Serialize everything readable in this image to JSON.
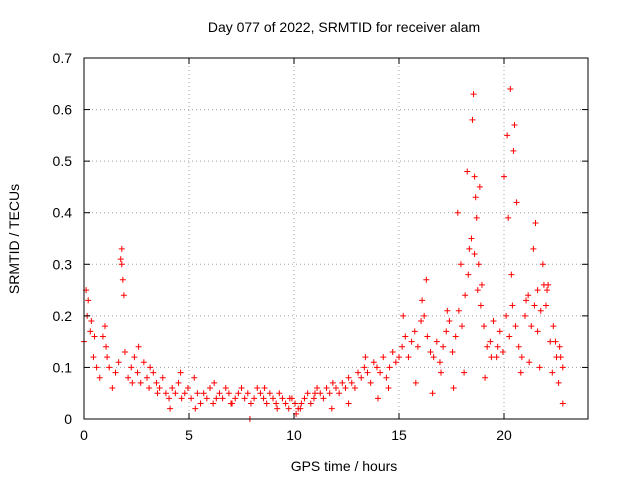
{
  "chart_data": {
    "type": "scatter",
    "title": "Day 077 of 2022, SRMTID for receiver alam",
    "xlabel": "GPS time / hours",
    "ylabel": "SRMTID / TECUs",
    "xlim": [
      0,
      24
    ],
    "ylim": [
      0,
      0.7
    ],
    "xticks": [
      0,
      5,
      10,
      15,
      20
    ],
    "yticks": [
      0,
      0.1,
      0.2,
      0.3,
      0.4,
      0.5,
      0.6,
      0.7
    ],
    "xtick_labels": [
      "0",
      "5",
      "10",
      "15",
      "20"
    ],
    "ytick_labels": [
      "0",
      "0.1",
      "0.2",
      "0.3",
      "0.4",
      "0.5",
      "0.6",
      "0.7"
    ],
    "grid": true,
    "marker": "+",
    "color": "#ff0000",
    "series": [
      {
        "name": "SRMTID",
        "x": [
          0.0,
          0.15,
          0.3,
          0.45,
          0.6,
          0.75,
          0.9,
          1.05,
          1.2,
          1.35,
          1.5,
          1.65,
          1.8,
          1.95,
          2.1,
          2.25,
          2.4,
          2.55,
          2.7,
          2.85,
          3.0,
          3.15,
          3.3,
          3.45,
          3.6,
          3.75,
          3.9,
          4.05,
          4.2,
          4.35,
          4.5,
          4.65,
          4.8,
          4.95,
          5.1,
          5.25,
          5.4,
          5.55,
          5.7,
          5.85,
          6.0,
          6.15,
          6.3,
          6.45,
          6.6,
          6.75,
          6.9,
          7.05,
          7.2,
          7.35,
          7.5,
          7.65,
          7.8,
          7.95,
          8.1,
          8.25,
          8.4,
          8.55,
          8.7,
          8.85,
          9.0,
          9.15,
          9.3,
          9.45,
          9.6,
          9.75,
          9.9,
          10.05,
          10.2,
          10.35,
          10.5,
          10.65,
          10.8,
          10.95,
          11.1,
          11.25,
          11.4,
          11.55,
          11.7,
          11.85,
          12.0,
          12.15,
          12.3,
          12.45,
          12.6,
          12.75,
          12.9,
          13.05,
          13.2,
          13.35,
          13.5,
          13.65,
          13.8,
          13.95,
          14.1,
          14.25,
          14.4,
          14.55,
          14.7,
          14.85,
          15.0,
          15.15,
          15.3,
          15.45,
          15.6,
          15.75,
          15.9,
          16.05,
          16.2,
          16.35,
          16.5,
          16.65,
          16.8,
          16.95,
          17.1,
          17.25,
          17.4,
          17.55,
          17.7,
          17.85,
          18.0,
          18.15,
          18.3,
          18.45,
          18.6,
          18.75,
          18.9,
          19.05,
          19.2,
          19.35,
          19.5,
          19.65,
          19.8,
          19.95,
          20.1,
          20.25,
          20.4,
          20.55,
          20.7,
          20.85,
          21.0,
          21.15,
          21.3,
          21.45,
          21.6,
          21.75,
          21.9,
          22.05,
          22.2,
          22.35,
          22.5,
          22.65,
          22.8,
          0.1,
          0.2,
          0.35,
          0.5,
          1.0,
          1.1,
          1.75,
          1.8,
          1.85,
          1.9,
          2.3,
          2.6,
          3.1,
          3.5,
          4.1,
          4.6,
          5.3,
          6.2,
          7.0,
          7.9,
          8.6,
          9.2,
          9.8,
          10.1,
          10.3,
          11.0,
          11.8,
          12.6,
          13.4,
          14.0,
          14.5,
          15.2,
          15.8,
          16.1,
          16.3,
          16.6,
          17.0,
          17.3,
          17.6,
          17.8,
          17.95,
          18.1,
          18.25,
          18.35,
          18.5,
          18.55,
          18.6,
          18.65,
          18.7,
          18.8,
          18.85,
          18.95,
          19.1,
          19.4,
          19.7,
          20.0,
          20.15,
          20.2,
          20.3,
          20.35,
          20.45,
          20.5,
          20.6,
          20.8,
          21.05,
          21.2,
          21.4,
          21.5,
          21.6,
          21.7,
          21.85,
          22.0,
          22.1,
          22.3,
          22.45,
          22.6,
          22.7,
          22.8
        ],
        "y": [
          0.15,
          0.2,
          0.17,
          0.12,
          0.1,
          0.08,
          0.16,
          0.14,
          0.1,
          0.06,
          0.09,
          0.11,
          0.3,
          0.13,
          0.08,
          0.1,
          0.12,
          0.09,
          0.07,
          0.11,
          0.08,
          0.1,
          0.09,
          0.07,
          0.06,
          0.08,
          0.05,
          0.04,
          0.06,
          0.05,
          0.07,
          0.04,
          0.05,
          0.06,
          0.04,
          0.08,
          0.05,
          0.03,
          0.05,
          0.04,
          0.06,
          0.03,
          0.04,
          0.05,
          0.04,
          0.06,
          0.05,
          0.03,
          0.04,
          0.05,
          0.06,
          0.04,
          0.05,
          0.03,
          0.04,
          0.06,
          0.05,
          0.04,
          0.03,
          0.05,
          0.04,
          0.03,
          0.05,
          0.04,
          0.03,
          0.02,
          0.04,
          0.03,
          0.02,
          0.03,
          0.04,
          0.05,
          0.03,
          0.04,
          0.06,
          0.05,
          0.04,
          0.06,
          0.05,
          0.07,
          0.06,
          0.05,
          0.07,
          0.06,
          0.08,
          0.07,
          0.06,
          0.09,
          0.08,
          0.1,
          0.09,
          0.07,
          0.11,
          0.1,
          0.09,
          0.12,
          0.08,
          0.1,
          0.13,
          0.11,
          0.12,
          0.14,
          0.16,
          0.12,
          0.15,
          0.17,
          0.14,
          0.19,
          0.2,
          0.16,
          0.13,
          0.12,
          0.15,
          0.11,
          0.14,
          0.17,
          0.19,
          0.13,
          0.16,
          0.21,
          0.18,
          0.24,
          0.28,
          0.35,
          0.32,
          0.25,
          0.22,
          0.18,
          0.14,
          0.15,
          0.19,
          0.12,
          0.17,
          0.13,
          0.2,
          0.16,
          0.22,
          0.18,
          0.14,
          0.12,
          0.2,
          0.24,
          0.18,
          0.22,
          0.17,
          0.21,
          0.26,
          0.25,
          0.15,
          0.18,
          0.12,
          0.14,
          0.1,
          0.25,
          0.23,
          0.19,
          0.16,
          0.18,
          0.12,
          0.31,
          0.33,
          0.27,
          0.24,
          0.07,
          0.14,
          0.06,
          0.05,
          0.02,
          0.09,
          0.02,
          0.07,
          0.03,
          0.0,
          0.06,
          0.02,
          0.04,
          0.01,
          0.02,
          0.05,
          0.02,
          0.03,
          0.12,
          0.04,
          0.06,
          0.2,
          0.07,
          0.23,
          0.27,
          0.05,
          0.09,
          0.21,
          0.06,
          0.4,
          0.3,
          0.09,
          0.48,
          0.33,
          0.58,
          0.63,
          0.47,
          0.43,
          0.39,
          0.3,
          0.45,
          0.26,
          0.08,
          0.12,
          0.14,
          0.47,
          0.55,
          0.39,
          0.64,
          0.28,
          0.52,
          0.57,
          0.42,
          0.09,
          0.23,
          0.11,
          0.33,
          0.38,
          0.25,
          0.1,
          0.3,
          0.22,
          0.26,
          0.09,
          0.15,
          0.07,
          0.12,
          0.03
        ]
      }
    ]
  }
}
